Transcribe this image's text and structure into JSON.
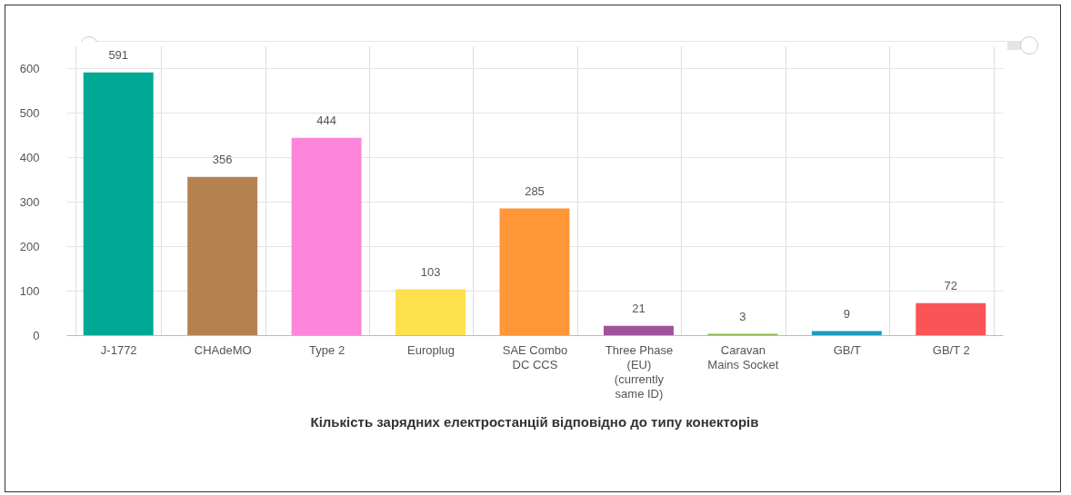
{
  "chart_data": {
    "type": "bar",
    "title": "Кількість зарядних електростанцій відповідно до типу конекторів",
    "categories": [
      "J-1772",
      "CHAdeMO",
      "Type 2",
      "Europlug",
      "SAE Combo\nDC CCS",
      "Three Phase\n(EU)\n(currently\nsame ID)",
      "Caravan\nMains Socket",
      "GB/T",
      "GB/T 2"
    ],
    "values": [
      591,
      356,
      444,
      103,
      285,
      21,
      3,
      9,
      72
    ],
    "colors": [
      "#00a995",
      "#b5824f",
      "#fd86da",
      "#ffe04d",
      "#ff9637",
      "#a0529b",
      "#8db74b",
      "#1b9bc0",
      "#fa5457"
    ],
    "ylim": [
      0,
      650
    ],
    "yticks": [
      0,
      100,
      200,
      300,
      400,
      500,
      600
    ],
    "grid": true,
    "data_labels": true
  }
}
